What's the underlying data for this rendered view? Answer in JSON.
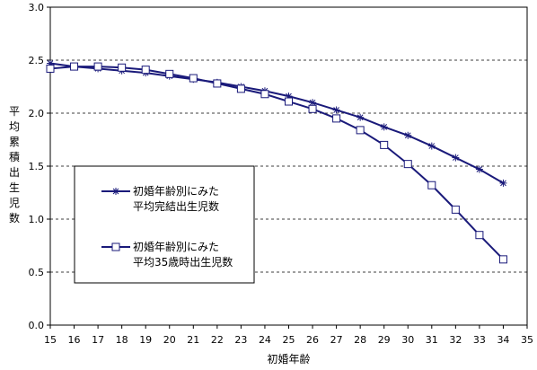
{
  "chart_data": {
    "type": "line",
    "title": "",
    "xlabel": "初婚年齢",
    "ylabel": "平均累積出生児数",
    "xlim": [
      15,
      35
    ],
    "ylim": [
      0.0,
      3.0
    ],
    "x_ticks": [
      "15",
      "16",
      "17",
      "18",
      "19",
      "20",
      "21",
      "22",
      "23",
      "24",
      "25",
      "26",
      "27",
      "28",
      "29",
      "30",
      "31",
      "32",
      "33",
      "34",
      "35"
    ],
    "y_ticks": [
      "0.0",
      "0.5",
      "1.0",
      "1.5",
      "2.0",
      "2.5",
      "3.0"
    ],
    "grid": "horizontal-dashed",
    "legend_position": "lower-left",
    "series": [
      {
        "name_lines": [
          "初婚年齢別にみた",
          "平均完結出生児数"
        ],
        "marker": "asterisk",
        "color": "#1a1a7a",
        "x": [
          15,
          16,
          17,
          18,
          19,
          20,
          21,
          22,
          23,
          24,
          25,
          26,
          27,
          28,
          29,
          30,
          31,
          32,
          33,
          34
        ],
        "y": [
          2.47,
          2.44,
          2.42,
          2.4,
          2.38,
          2.35,
          2.32,
          2.29,
          2.25,
          2.21,
          2.16,
          2.1,
          2.03,
          1.96,
          1.87,
          1.79,
          1.69,
          1.58,
          1.47,
          1.34
        ]
      },
      {
        "name_lines": [
          "初婚年齢別にみた",
          "平均35歳時出生児数"
        ],
        "marker": "square",
        "color": "#1a1a7a",
        "x": [
          15,
          16,
          17,
          18,
          19,
          20,
          21,
          22,
          23,
          24,
          25,
          26,
          27,
          28,
          29,
          30,
          31,
          32,
          33,
          34
        ],
        "y": [
          2.42,
          2.44,
          2.44,
          2.43,
          2.41,
          2.37,
          2.33,
          2.28,
          2.23,
          2.18,
          2.11,
          2.04,
          1.95,
          1.84,
          1.7,
          1.52,
          1.32,
          1.09,
          0.85,
          0.62
        ]
      }
    ]
  }
}
